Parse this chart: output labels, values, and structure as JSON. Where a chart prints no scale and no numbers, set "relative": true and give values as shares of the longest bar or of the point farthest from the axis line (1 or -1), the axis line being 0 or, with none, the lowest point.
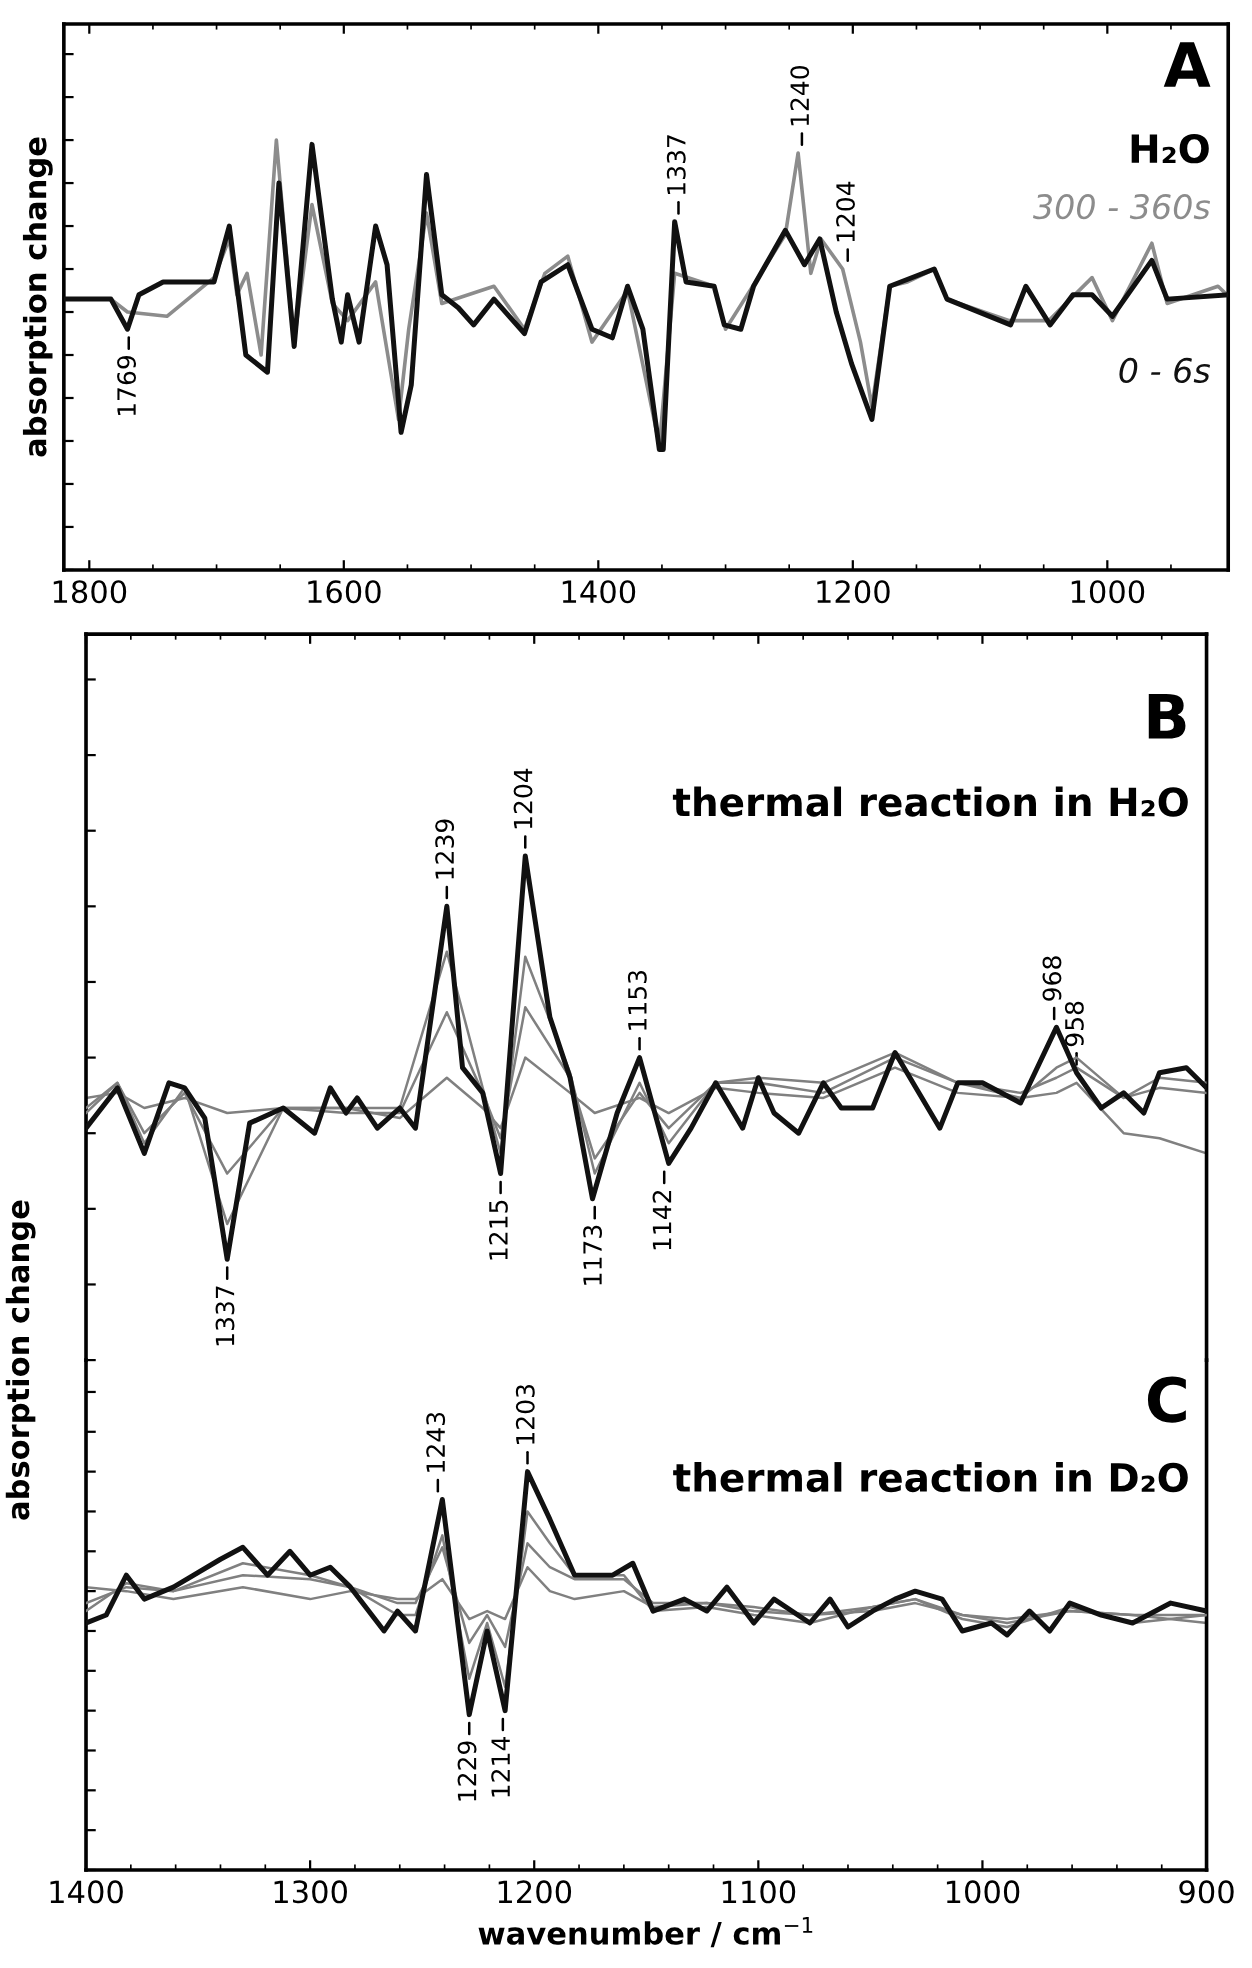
{
  "chart_data": [
    {
      "type": "line",
      "title": "A",
      "subtitle": "H₂O",
      "ylabel": "absorption change",
      "relative": true,
      "xlim": [
        1820,
        905
      ],
      "xticks": [
        1800,
        1600,
        1400,
        1200,
        1000
      ],
      "series": [
        {
          "name": "300 - 360s",
          "color": "#8c8c8c",
          "x": [
            1820,
            1783,
            1770,
            1739,
            1702,
            1690,
            1684,
            1676,
            1665,
            1653,
            1639,
            1625,
            1609,
            1597,
            1575,
            1557,
            1549,
            1535,
            1523,
            1482,
            1458,
            1442,
            1424,
            1405,
            1377,
            1352,
            1340,
            1309,
            1300,
            1253,
            1243,
            1233,
            1225,
            1208,
            1194,
            1185,
            1171,
            1157,
            1136,
            1126,
            1077,
            1046,
            1012,
            996,
            965,
            953,
            913,
            906
          ],
          "values": [
            0.63,
            0.63,
            0.6,
            0.59,
            0.68,
            0.77,
            0.64,
            0.69,
            0.5,
            1.0,
            0.53,
            0.85,
            0.62,
            0.58,
            0.67,
            0.35,
            0.56,
            0.83,
            0.62,
            0.66,
            0.56,
            0.69,
            0.73,
            0.53,
            0.65,
            0.29,
            0.69,
            0.66,
            0.56,
            0.78,
            0.97,
            0.69,
            0.77,
            0.7,
            0.53,
            0.38,
            0.66,
            0.67,
            0.7,
            0.63,
            0.58,
            0.58,
            0.68,
            0.58,
            0.76,
            0.62,
            0.66,
            0.64
          ]
        },
        {
          "name": "0 - 6s",
          "color": "#111111",
          "x": [
            1820,
            1783,
            1770,
            1761,
            1742,
            1702,
            1690,
            1677,
            1660,
            1651,
            1639,
            1625,
            1609,
            1602,
            1597,
            1588,
            1575,
            1566,
            1555,
            1547,
            1535,
            1523,
            1510,
            1498,
            1482,
            1458,
            1445,
            1424,
            1405,
            1389,
            1377,
            1365,
            1352,
            1349,
            1340,
            1331,
            1309,
            1301,
            1288,
            1278,
            1253,
            1238,
            1226,
            1213,
            1201,
            1185,
            1171,
            1136,
            1126,
            1076,
            1064,
            1045,
            1027,
            1012,
            996,
            965,
            953,
            906
          ],
          "values": [
            0.63,
            0.63,
            0.56,
            0.64,
            0.67,
            0.67,
            0.8,
            0.5,
            0.46,
            0.9,
            0.52,
            0.99,
            0.63,
            0.53,
            0.64,
            0.53,
            0.8,
            0.71,
            0.32,
            0.43,
            0.92,
            0.64,
            0.61,
            0.57,
            0.63,
            0.55,
            0.67,
            0.71,
            0.56,
            0.54,
            0.66,
            0.56,
            0.28,
            0.28,
            0.81,
            0.67,
            0.66,
            0.57,
            0.56,
            0.66,
            0.79,
            0.71,
            0.77,
            0.6,
            0.48,
            0.35,
            0.66,
            0.7,
            0.63,
            0.57,
            0.66,
            0.57,
            0.64,
            0.64,
            0.59,
            0.72,
            0.63,
            0.64
          ]
        }
      ],
      "annotations": [
        {
          "text": "1769",
          "x": 1769,
          "y": 0.56
        },
        {
          "text": "1337",
          "x": 1337,
          "y": 0.81
        },
        {
          "text": "1240",
          "x": 1240,
          "y": 0.97
        },
        {
          "text": "1204",
          "x": 1204,
          "y": 0.7
        }
      ]
    },
    {
      "type": "line",
      "title": "B",
      "subtitle": "thermal reaction in H₂O",
      "ylabel": "absorption change",
      "relative": true,
      "xlim": [
        1400,
        900
      ],
      "tick_labels": false,
      "series": [
        {
          "color": "#808080",
          "x": [
            1400,
            1386,
            1374,
            1356,
            1337,
            1312,
            1284,
            1260,
            1239,
            1223,
            1215,
            1204,
            1184,
            1173,
            1153,
            1140,
            1119,
            1100,
            1071,
            1039,
            1011,
            983,
            967,
            958,
            937,
            921,
            900
          ],
          "values": [
            0.52,
            0.53,
            0.5,
            0.52,
            0.49,
            0.5,
            0.5,
            0.48,
            0.56,
            0.5,
            0.46,
            0.6,
            0.53,
            0.49,
            0.52,
            0.49,
            0.54,
            0.53,
            0.52,
            0.58,
            0.53,
            0.52,
            0.53,
            0.55,
            0.45,
            0.44,
            0.41
          ]
        },
        {
          "color": "#808080",
          "x": [
            1400,
            1386,
            1374,
            1356,
            1337,
            1312,
            1284,
            1260,
            1239,
            1223,
            1215,
            1204,
            1184,
            1173,
            1153,
            1140,
            1119,
            1100,
            1071,
            1039,
            1011,
            983,
            967,
            958,
            937,
            921,
            900
          ],
          "values": [
            0.5,
            0.55,
            0.45,
            0.53,
            0.37,
            0.5,
            0.49,
            0.49,
            0.69,
            0.53,
            0.44,
            0.7,
            0.56,
            0.4,
            0.53,
            0.46,
            0.55,
            0.55,
            0.53,
            0.6,
            0.55,
            0.53,
            0.56,
            0.58,
            0.52,
            0.54,
            0.53
          ]
        },
        {
          "color": "#808080",
          "x": [
            1400,
            1386,
            1374,
            1356,
            1337,
            1312,
            1284,
            1260,
            1239,
            1223,
            1215,
            1204,
            1184,
            1173,
            1153,
            1140,
            1119,
            1100,
            1071,
            1039,
            1011,
            983,
            967,
            958,
            937,
            921,
            900
          ],
          "values": [
            0.49,
            0.55,
            0.43,
            0.54,
            0.27,
            0.5,
            0.5,
            0.5,
            0.81,
            0.54,
            0.41,
            0.8,
            0.57,
            0.37,
            0.55,
            0.43,
            0.55,
            0.56,
            0.55,
            0.61,
            0.55,
            0.52,
            0.58,
            0.6,
            0.52,
            0.56,
            0.55
          ]
        },
        {
          "color": "#111111",
          "x": [
            1400,
            1386,
            1374,
            1363,
            1356,
            1347,
            1337,
            1327,
            1312,
            1298,
            1291,
            1284,
            1279,
            1270,
            1260,
            1253,
            1239,
            1232,
            1223,
            1215,
            1204,
            1193,
            1184,
            1174,
            1163,
            1153,
            1140,
            1130,
            1119,
            1107,
            1100,
            1093,
            1082,
            1071,
            1063,
            1049,
            1039,
            1019,
            1011,
            1000,
            983,
            967,
            958,
            947,
            937,
            928,
            921,
            909,
            900
          ],
          "values": [
            0.46,
            0.54,
            0.41,
            0.55,
            0.54,
            0.48,
            0.2,
            0.47,
            0.5,
            0.45,
            0.54,
            0.49,
            0.52,
            0.46,
            0.5,
            0.46,
            0.9,
            0.58,
            0.53,
            0.37,
            1.0,
            0.68,
            0.56,
            0.32,
            0.49,
            0.6,
            0.39,
            0.46,
            0.55,
            0.46,
            0.56,
            0.49,
            0.45,
            0.55,
            0.5,
            0.5,
            0.61,
            0.46,
            0.55,
            0.55,
            0.51,
            0.66,
            0.57,
            0.5,
            0.53,
            0.49,
            0.57,
            0.58,
            0.54
          ]
        }
      ],
      "annotations": [
        {
          "text": "1337",
          "x": 1337,
          "y": 0.2
        },
        {
          "text": "1239",
          "x": 1239,
          "y": 0.9
        },
        {
          "text": "1215",
          "x": 1215,
          "y": 0.37
        },
        {
          "text": "1204",
          "x": 1204,
          "y": 1.0
        },
        {
          "text": "1173",
          "x": 1173,
          "y": 0.32
        },
        {
          "text": "1153",
          "x": 1153,
          "y": 0.6
        },
        {
          "text": "1142",
          "x": 1142,
          "y": 0.39
        },
        {
          "text": "968",
          "x": 968,
          "y": 0.66
        },
        {
          "text": "958",
          "x": 958,
          "y": 0.57
        }
      ]
    },
    {
      "type": "line",
      "title": "C",
      "subtitle": "thermal reaction in D₂O",
      "xlabel": "wavenumber / cm$^{−1}$",
      "relative": true,
      "xlim": [
        1400,
        900
      ],
      "xticks": [
        1400,
        1300,
        1200,
        1100,
        1000,
        900
      ],
      "series": [
        {
          "color": "#808080",
          "x": [
            1400,
            1382,
            1361,
            1330,
            1300,
            1282,
            1261,
            1253,
            1241,
            1229,
            1221,
            1213,
            1203,
            1193,
            1182,
            1160,
            1147,
            1123,
            1102,
            1077,
            1049,
            1030,
            1009,
            989,
            961,
            933,
            900
          ],
          "values": [
            0.71,
            0.7,
            0.68,
            0.71,
            0.68,
            0.7,
            0.68,
            0.68,
            0.73,
            0.63,
            0.65,
            0.63,
            0.76,
            0.7,
            0.68,
            0.7,
            0.66,
            0.67,
            0.66,
            0.64,
            0.65,
            0.67,
            0.64,
            0.63,
            0.65,
            0.64,
            0.62
          ]
        },
        {
          "color": "#808080",
          "x": [
            1400,
            1382,
            1361,
            1330,
            1300,
            1282,
            1261,
            1253,
            1241,
            1229,
            1221,
            1213,
            1203,
            1193,
            1182,
            1160,
            1147,
            1123,
            1102,
            1077,
            1049,
            1030,
            1009,
            989,
            961,
            933,
            900
          ],
          "values": [
            0.67,
            0.71,
            0.7,
            0.74,
            0.73,
            0.71,
            0.67,
            0.67,
            0.81,
            0.57,
            0.64,
            0.56,
            0.82,
            0.76,
            0.73,
            0.73,
            0.67,
            0.67,
            0.65,
            0.64,
            0.66,
            0.68,
            0.64,
            0.62,
            0.65,
            0.64,
            0.64
          ]
        },
        {
          "color": "#808080",
          "x": [
            1400,
            1382,
            1361,
            1330,
            1300,
            1282,
            1261,
            1253,
            1241,
            1229,
            1221,
            1213,
            1203,
            1193,
            1182,
            1160,
            1147,
            1123,
            1102,
            1077,
            1049,
            1030,
            1009,
            989,
            961,
            933,
            900
          ],
          "values": [
            0.65,
            0.72,
            0.7,
            0.77,
            0.74,
            0.71,
            0.64,
            0.64,
            0.84,
            0.48,
            0.62,
            0.46,
            0.9,
            0.82,
            0.74,
            0.74,
            0.65,
            0.66,
            0.64,
            0.62,
            0.66,
            0.68,
            0.63,
            0.61,
            0.66,
            0.62,
            0.64
          ]
        },
        {
          "color": "#111111",
          "x": [
            1400,
            1391,
            1382,
            1374,
            1361,
            1340,
            1330,
            1319,
            1309,
            1300,
            1291,
            1282,
            1267,
            1261,
            1253,
            1241,
            1229,
            1221,
            1213,
            1203,
            1193,
            1182,
            1165,
            1156,
            1147,
            1133,
            1123,
            1114,
            1102,
            1093,
            1077,
            1068,
            1060,
            1049,
            1039,
            1030,
            1018,
            1009,
            996,
            989,
            979,
            970,
            961,
            947,
            933,
            916,
            900
          ],
          "values": [
            0.62,
            0.64,
            0.74,
            0.68,
            0.71,
            0.78,
            0.81,
            0.74,
            0.8,
            0.74,
            0.76,
            0.71,
            0.6,
            0.65,
            0.6,
            0.93,
            0.39,
            0.6,
            0.4,
            1.0,
            0.88,
            0.74,
            0.74,
            0.77,
            0.65,
            0.68,
            0.65,
            0.71,
            0.62,
            0.68,
            0.62,
            0.68,
            0.61,
            0.65,
            0.68,
            0.7,
            0.68,
            0.6,
            0.62,
            0.59,
            0.65,
            0.6,
            0.67,
            0.64,
            0.62,
            0.67,
            0.65
          ]
        }
      ],
      "annotations": [
        {
          "text": "1243",
          "x": 1243,
          "y": 0.93
        },
        {
          "text": "1229",
          "x": 1229,
          "y": 0.39
        },
        {
          "text": "1214",
          "x": 1214,
          "y": 0.4
        },
        {
          "text": "1203",
          "x": 1203,
          "y": 1.0
        }
      ]
    }
  ]
}
